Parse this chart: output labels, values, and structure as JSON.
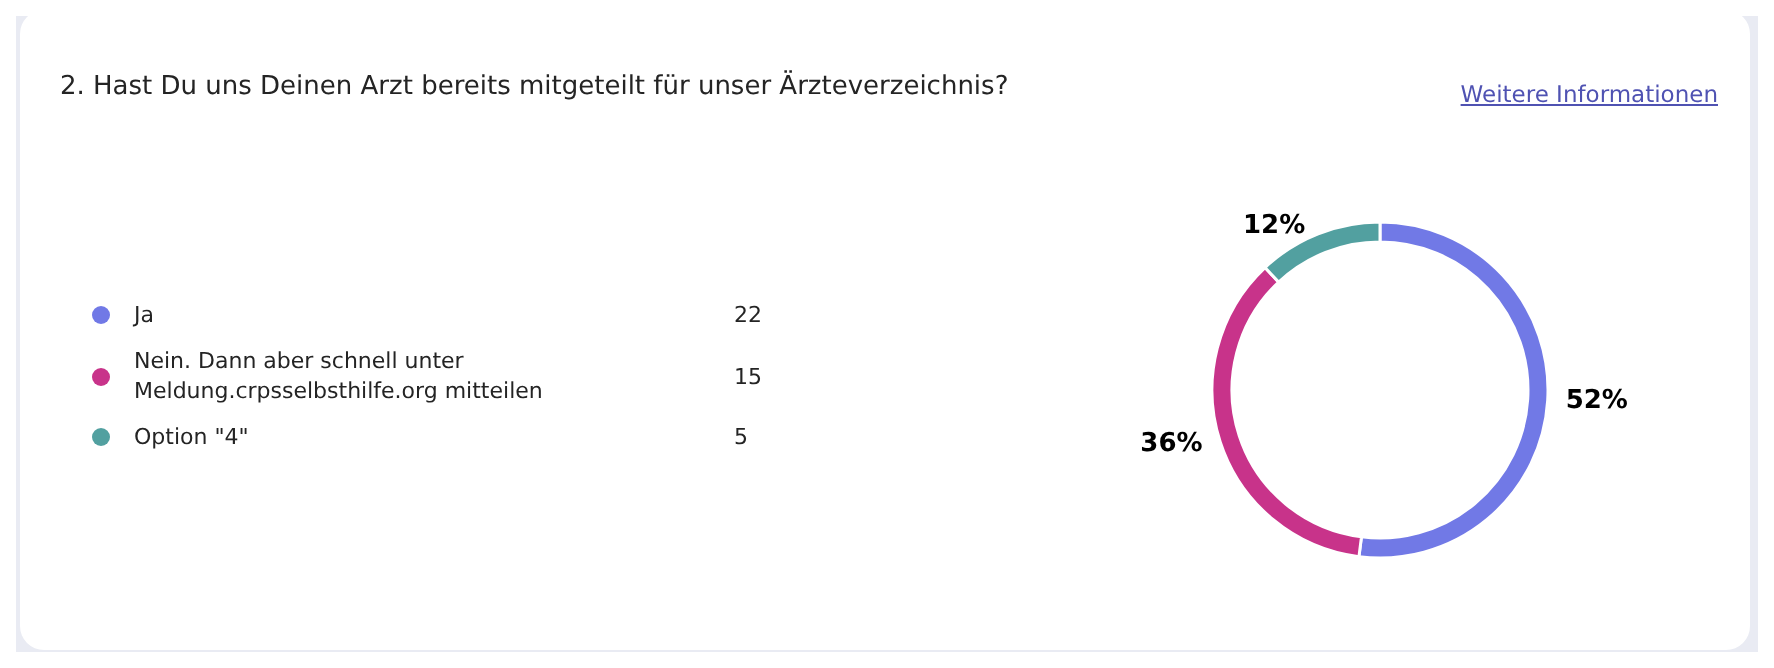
{
  "chart_data": {
    "type": "donut",
    "title": "2. Hast Du uns Deinen Arzt bereits mitgeteilt für unser Ärzteverzeichnis?",
    "categories": [
      "Ja",
      "Nein. Dann aber schnell unter Meldung.crpsselbsthilfe.org mitteilen",
      "Option \"4\""
    ],
    "values": [
      52,
      36,
      12
    ],
    "colors": [
      "#7179e6",
      "#c8338a",
      "#52a0a0"
    ],
    "value_labels": [
      "52%",
      "36%",
      "12%"
    ],
    "legend": "left",
    "annotations": [
      "Weitere Informationen",
      "22",
      "15",
      "5"
    ]
  }
}
